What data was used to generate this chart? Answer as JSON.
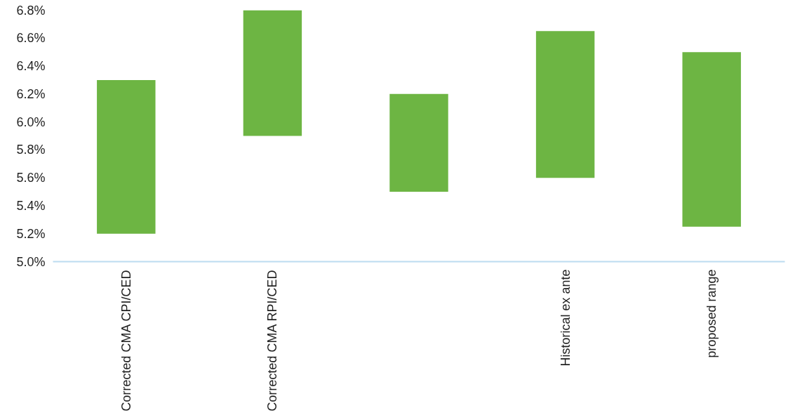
{
  "chart_data": {
    "type": "bar",
    "categories": [
      "Corrected CMA CPI/CED",
      "Corrected CMA RPI/CED",
      null,
      "Historical ex ante",
      "proposed range"
    ],
    "base": [
      5.2,
      5.9,
      5.5,
      5.6,
      5.25
    ],
    "values": [
      1.1,
      0.9,
      0.7,
      1.05,
      1.25
    ],
    "color": "#6db543",
    "ylim": [
      5.0,
      6.8
    ],
    "yticks": [
      {
        "value": 5.0,
        "label": "5.0%"
      },
      {
        "value": 5.2,
        "label": "5.2%"
      },
      {
        "value": 5.4,
        "label": "5.4%"
      },
      {
        "value": 5.6,
        "label": "5.6%"
      },
      {
        "value": 5.8,
        "label": "5.8%"
      },
      {
        "value": 6.0,
        "label": "6.0%"
      },
      {
        "value": 6.2,
        "label": "6.2%"
      },
      {
        "value": 6.4,
        "label": "6.4%"
      },
      {
        "value": 6.6,
        "label": "6.6%"
      },
      {
        "value": 6.8,
        "label": "6.8%"
      }
    ],
    "grid": false
  }
}
